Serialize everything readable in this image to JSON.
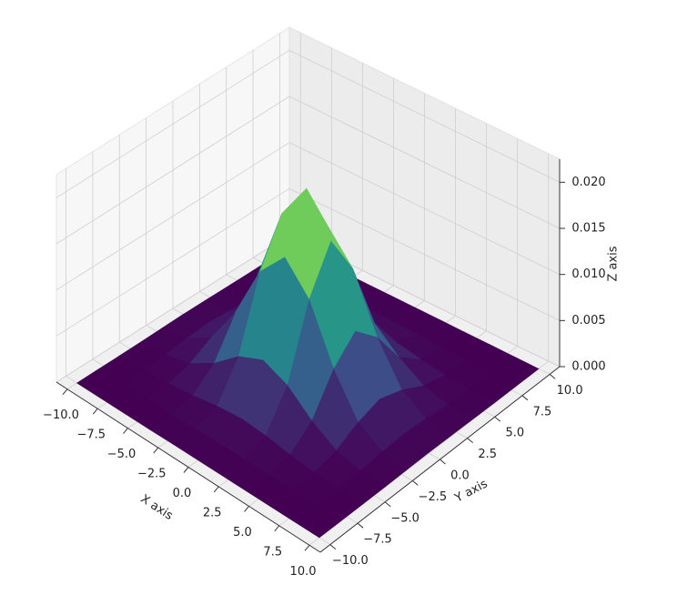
{
  "chart_data": {
    "type": "surface",
    "x_label": "X axis",
    "y_label": "Y axis",
    "z_label": "Z axis",
    "colormap": "viridis",
    "x": [
      -10,
      -8,
      -6,
      -4,
      -2,
      0,
      2,
      4,
      6,
      8,
      10
    ],
    "y": [
      -10,
      -8,
      -6,
      -4,
      -2,
      0,
      2,
      4,
      6,
      8,
      10
    ],
    "z": [
      [
        0,
        0,
        0,
        0,
        1e-05,
        1e-05,
        1e-05,
        0,
        0,
        0,
        0
      ],
      [
        0,
        0,
        2e-05,
        5e-05,
        0.0001,
        0.00013,
        0.0001,
        5e-05,
        2e-05,
        0,
        0
      ],
      [
        0,
        3e-05,
        0.00016,
        0.00049,
        0.00095,
        0.00119,
        0.00095,
        0.00049,
        0.00016,
        3e-05,
        0
      ],
      [
        2e-05,
        0.00017,
        0.0008,
        0.00242,
        0.00472,
        0.00589,
        0.00472,
        0.00242,
        0.0008,
        0.00017,
        2e-05
      ],
      [
        6e-05,
        0.00044,
        0.00208,
        0.00632,
        0.01233,
        0.01539,
        0.01233,
        0.00632,
        0.00208,
        0.00044,
        6e-05
      ],
      [
        8e-05,
        0.00061,
        0.00286,
        0.00871,
        0.01698,
        0.0212,
        0.01698,
        0.00871,
        0.00286,
        0.00061,
        8e-05
      ],
      [
        6e-05,
        0.00044,
        0.00208,
        0.00632,
        0.01233,
        0.01539,
        0.01233,
        0.00632,
        0.00208,
        0.00044,
        6e-05
      ],
      [
        2e-05,
        0.00017,
        0.0008,
        0.00242,
        0.00472,
        0.00589,
        0.00472,
        0.00242,
        0.0008,
        0.00017,
        2e-05
      ],
      [
        0,
        3e-05,
        0.00016,
        0.00049,
        0.00095,
        0.00119,
        0.00095,
        0.00049,
        0.00016,
        3e-05,
        0
      ],
      [
        0,
        0,
        2e-05,
        5e-05,
        0.0001,
        0.00013,
        0.0001,
        5e-05,
        2e-05,
        0,
        0
      ],
      [
        0,
        0,
        0,
        0,
        1e-05,
        1e-05,
        1e-05,
        0,
        0,
        0,
        0
      ]
    ],
    "xlim": [
      -10,
      10
    ],
    "ylim": [
      -10,
      10
    ],
    "zlim": [
      0,
      0.0225
    ],
    "xticks": [
      {
        "value": -10,
        "label": "−10.0"
      },
      {
        "value": -7.5,
        "label": "−7.5"
      },
      {
        "value": -5,
        "label": "−5.0"
      },
      {
        "value": -2.5,
        "label": "−2.5"
      },
      {
        "value": 0,
        "label": "0.0"
      },
      {
        "value": 2.5,
        "label": "2.5"
      },
      {
        "value": 5,
        "label": "5.0"
      },
      {
        "value": 7.5,
        "label": "7.5"
      },
      {
        "value": 10,
        "label": "10.0"
      }
    ],
    "yticks": [
      {
        "value": -10,
        "label": "−10.0"
      },
      {
        "value": -7.5,
        "label": "−7.5"
      },
      {
        "value": -5,
        "label": "−5.0"
      },
      {
        "value": -2.5,
        "label": "−2.5"
      },
      {
        "value": 0,
        "label": "0.0"
      },
      {
        "value": 2.5,
        "label": "2.5"
      },
      {
        "value": 5,
        "label": "5.0"
      },
      {
        "value": 7.5,
        "label": "7.5"
      },
      {
        "value": 10,
        "label": "10.0"
      }
    ],
    "zticks": [
      {
        "value": 0,
        "label": "0.000"
      },
      {
        "value": 0.005,
        "label": "0.005"
      },
      {
        "value": 0.01,
        "label": "0.010"
      },
      {
        "value": 0.015,
        "label": "0.015"
      },
      {
        "value": 0.02,
        "label": "0.020"
      }
    ],
    "grid": true
  }
}
